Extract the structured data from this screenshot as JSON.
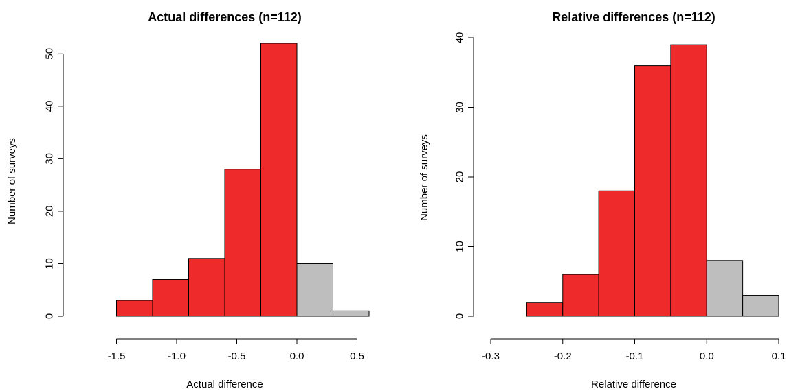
{
  "chart_data": [
    {
      "type": "bar",
      "title": "Actual differences (n=112)",
      "xlabel": "Actual difference",
      "ylabel": "Number of surveys",
      "xlim": [
        -1.8,
        0.6
      ],
      "ylim": [
        0,
        52
      ],
      "x_ticks": [
        -1.5,
        -1.0,
        -0.5,
        0.0,
        0.5
      ],
      "x_tick_labels": [
        "-1.5",
        "-1.0",
        "-0.5",
        "0.0",
        "0.5"
      ],
      "y_ticks": [
        0,
        10,
        20,
        30,
        40,
        50
      ],
      "y_tick_labels": [
        "0",
        "10",
        "20",
        "30",
        "40",
        "50"
      ],
      "bins": [
        {
          "start": -1.8,
          "end": -1.5,
          "count": 0,
          "color": "#ee2a2a"
        },
        {
          "start": -1.5,
          "end": -1.2,
          "count": 3,
          "color": "#ee2a2a"
        },
        {
          "start": -1.2,
          "end": -0.9,
          "count": 7,
          "color": "#ee2a2a"
        },
        {
          "start": -0.9,
          "end": -0.6,
          "count": 11,
          "color": "#ee2a2a"
        },
        {
          "start": -0.6,
          "end": -0.3,
          "count": 28,
          "color": "#ee2a2a"
        },
        {
          "start": -0.3,
          "end": 0.0,
          "count": 52,
          "color": "#ee2a2a"
        },
        {
          "start": 0.0,
          "end": 0.3,
          "count": 10,
          "color": "#bebebe"
        },
        {
          "start": 0.3,
          "end": 0.6,
          "count": 1,
          "color": "#bebebe"
        }
      ]
    },
    {
      "type": "bar",
      "title": "Relative differences (n=112)",
      "xlabel": "Relative difference",
      "ylabel": "Number of surveys",
      "xlim": [
        -0.3,
        0.1
      ],
      "ylim": [
        0,
        40
      ],
      "x_ticks": [
        -0.3,
        -0.2,
        -0.1,
        0.0,
        0.1
      ],
      "x_tick_labels": [
        "-0.3",
        "-0.2",
        "-0.1",
        "0.0",
        "0.1"
      ],
      "y_ticks": [
        0,
        10,
        20,
        30,
        40
      ],
      "y_tick_labels": [
        "0",
        "10",
        "20",
        "30",
        "40"
      ],
      "bins": [
        {
          "start": -0.3,
          "end": -0.25,
          "count": 0,
          "color": "#ee2a2a"
        },
        {
          "start": -0.25,
          "end": -0.2,
          "count": 2,
          "color": "#ee2a2a"
        },
        {
          "start": -0.2,
          "end": -0.15,
          "count": 6,
          "color": "#ee2a2a"
        },
        {
          "start": -0.15,
          "end": -0.1,
          "count": 18,
          "color": "#ee2a2a"
        },
        {
          "start": -0.1,
          "end": -0.05,
          "count": 36,
          "color": "#ee2a2a"
        },
        {
          "start": -0.05,
          "end": 0.0,
          "count": 39,
          "color": "#ee2a2a"
        },
        {
          "start": 0.0,
          "end": 0.05,
          "count": 8,
          "color": "#bebebe"
        },
        {
          "start": 0.05,
          "end": 0.1,
          "count": 3,
          "color": "#bebebe"
        }
      ]
    }
  ]
}
